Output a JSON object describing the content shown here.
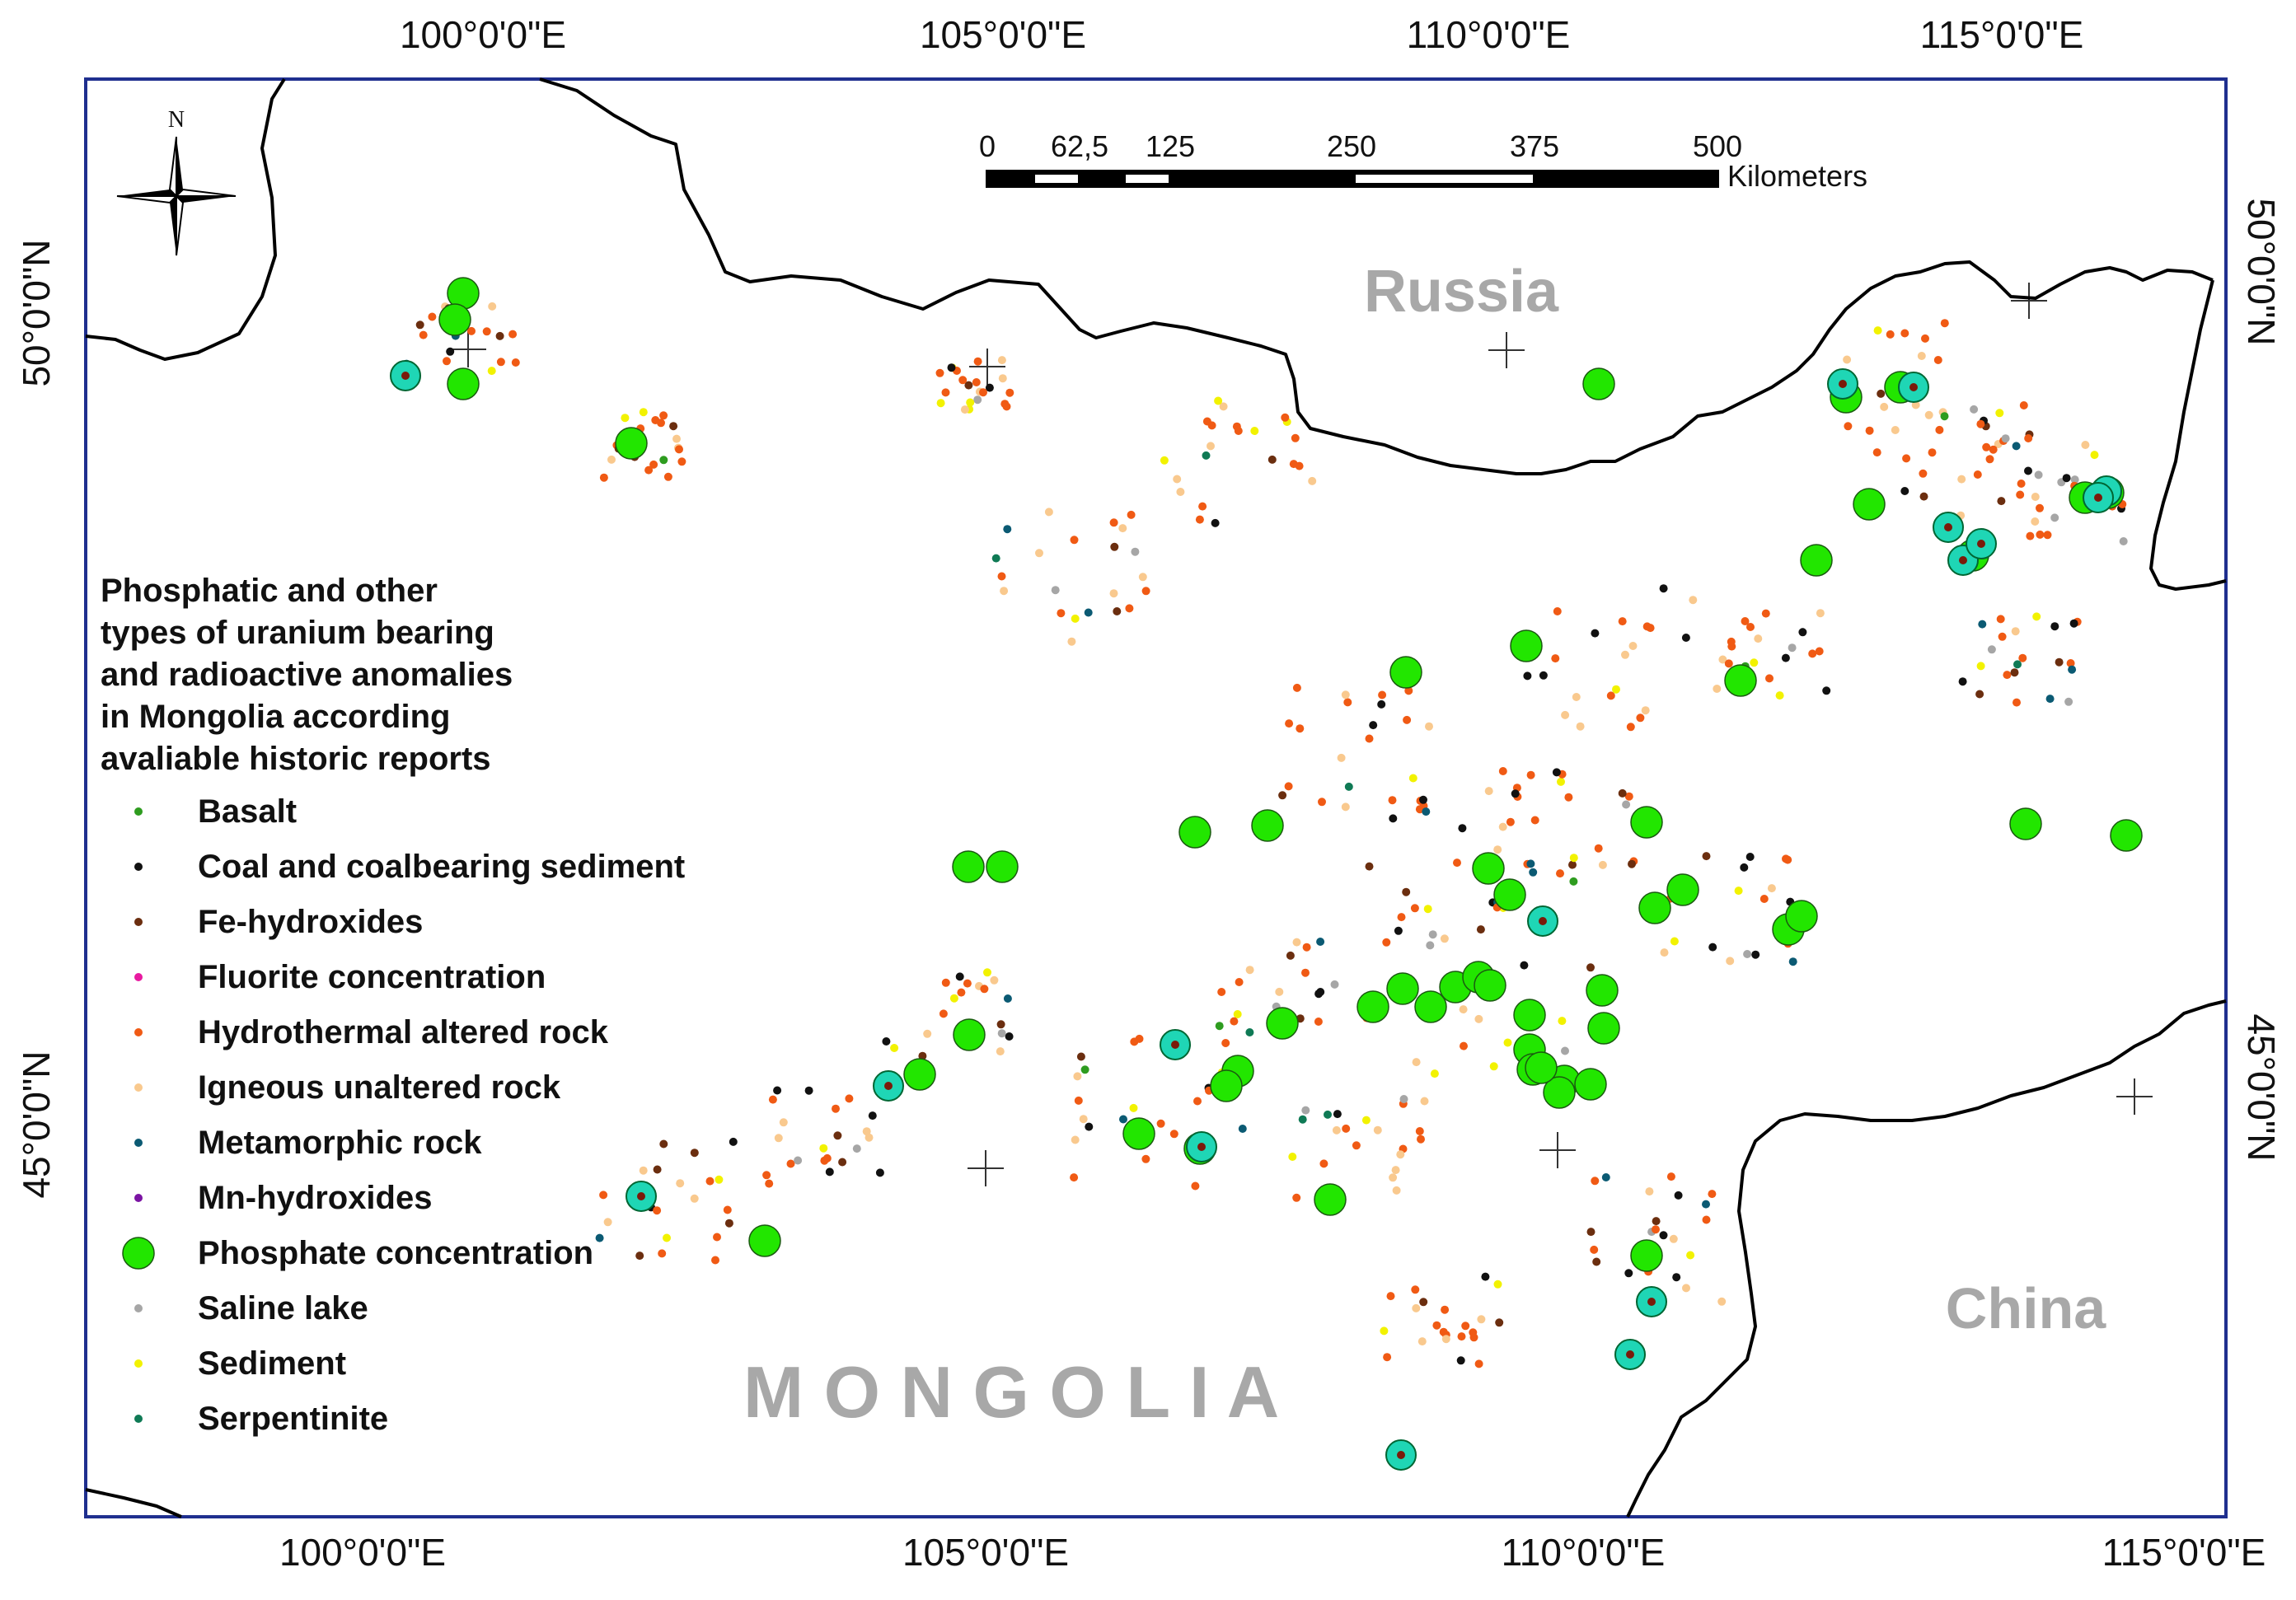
{
  "map": {
    "countries": {
      "russia": "Russia",
      "china": "China",
      "mongolia": "M O N G O L I A"
    },
    "north_arrow_label": "N",
    "scale_bar": {
      "ticks": [
        "0",
        "62,5",
        "125",
        "250",
        "375",
        "500"
      ],
      "unit": "Kilometers"
    },
    "top_longitudes": [
      "100°0'0\"E",
      "105°0'0\"E",
      "110°0'0\"E",
      "115°0'0\"E"
    ],
    "bottom_longitudes": [
      "100°0'0\"E",
      "105°0'0\"E",
      "110°0'0\"E",
      "115°0'0\"E"
    ],
    "left_latitudes": [
      "50°0'0\"N",
      "45°0'0\"N"
    ],
    "right_latitudes": [
      "50°0'0\"N",
      "45°0'0\"N"
    ]
  },
  "legend": {
    "title_lines": [
      "Phosphatic and other",
      "types of uranium bearing",
      "and radioactive anomalies",
      "in Mongolia according",
      "avaliable historic reports"
    ],
    "items": [
      {
        "label": "Basalt",
        "color": "#2e9c1f",
        "symbol": "dot"
      },
      {
        "label": "Coal and coalbearing sediment",
        "color": "#111111",
        "symbol": "dot"
      },
      {
        "label": "Fe-hydroxides",
        "color": "#6b2e0f",
        "symbol": "dot"
      },
      {
        "label": "Fluorite concentration",
        "color": "#e81aa0",
        "symbol": "dot"
      },
      {
        "label": "Hydrothermal altered rock",
        "color": "#f05a14",
        "symbol": "dot"
      },
      {
        "label": "Igneous unaltered rock",
        "color": "#f9c98e",
        "symbol": "dot"
      },
      {
        "label": "Metamorphic rock",
        "color": "#0b5a73",
        "symbol": "dot"
      },
      {
        "label": "Mn-hydroxides",
        "color": "#7b14a3",
        "symbol": "dot"
      },
      {
        "label": "Phosphate concentration",
        "color": "#22e600",
        "symbol": "circle"
      },
      {
        "label": "Saline lake",
        "color": "#a6a6a6",
        "symbol": "dot"
      },
      {
        "label": "Sediment",
        "color": "#f2f200",
        "symbol": "dot"
      },
      {
        "label": "Serpentinite",
        "color": "#0f7a55",
        "symbol": "dot"
      }
    ]
  },
  "colors": {
    "phosphate": "#22e600",
    "teal_marker": "#1fd6b5",
    "border": "#000000",
    "frame": "#1f2f8f"
  }
}
